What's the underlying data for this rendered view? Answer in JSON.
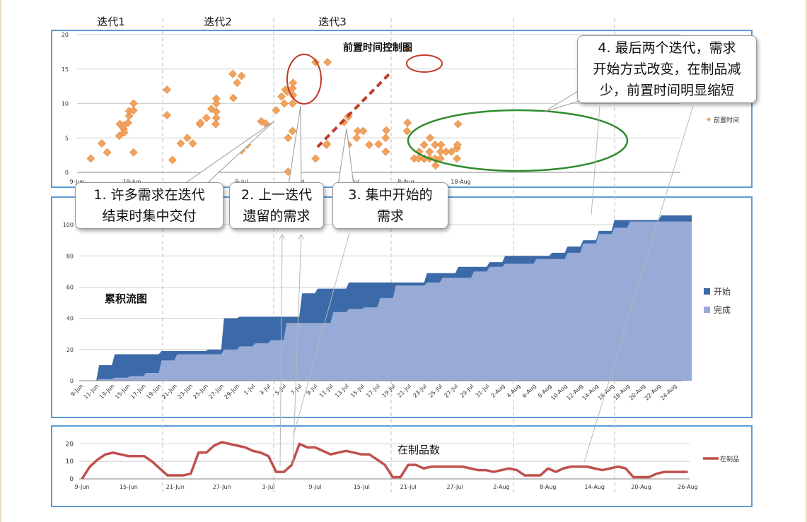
{
  "iterations": [
    "迭代1",
    "迭代2",
    "迭代3"
  ],
  "callouts": [
    {
      "lines": [
        "1. 许多需求在迭代",
        "结束时集中交付"
      ]
    },
    {
      "lines": [
        "2. 上一迭代",
        "遗留的需求"
      ]
    },
    {
      "lines": [
        "3. 集中开始的",
        "需求"
      ]
    },
    {
      "lines": [
        "4. 最后两个迭代，需求",
        "开始方式改变，在制品减",
        "少，前置时间明显缩短"
      ]
    }
  ],
  "colors": {
    "accent": "#5b9bd5",
    "scatter": "#f0a35e",
    "started": "#3c6aa8",
    "done": "#98abd6",
    "wip": "#c0504d",
    "annot_red": "#c0392b",
    "annot_green": "#2e8b2e"
  },
  "chart_data": [
    {
      "type": "scatter",
      "title": "前置时间控制图",
      "legend": [
        "前置时间"
      ],
      "legend_position": "right",
      "ylim": [
        0,
        20
      ],
      "yticks": [
        "0",
        "5",
        "10",
        "15",
        "20"
      ],
      "xticks": [
        "9-Jun",
        "19-Jun",
        "9-Jul",
        "19-Jul",
        "29-Jul",
        "8-Aug",
        "18-Aug"
      ],
      "xtick_days": [
        0,
        10,
        30,
        40,
        50,
        60,
        70
      ],
      "grid": true,
      "points": [
        [
          2.5,
          2
        ],
        [
          4.5,
          4.2
        ],
        [
          5.5,
          2.9
        ],
        [
          7.7,
          5.3
        ],
        [
          7.8,
          7
        ],
        [
          8.5,
          6.3
        ],
        [
          8.5,
          6.8
        ],
        [
          8.6,
          5.8
        ],
        [
          9.3,
          7.2
        ],
        [
          9.5,
          8.2
        ],
        [
          9.5,
          8.9
        ],
        [
          10.3,
          10
        ],
        [
          10.3,
          9
        ],
        [
          10.3,
          2.9
        ],
        [
          16.4,
          12
        ],
        [
          16.4,
          8.3
        ],
        [
          17.4,
          1.8
        ],
        [
          18.9,
          4.2
        ],
        [
          20.1,
          5
        ],
        [
          21.1,
          4.2
        ],
        [
          22.4,
          7
        ],
        [
          22.5,
          7.2
        ],
        [
          23.6,
          7.9
        ],
        [
          24.5,
          9.2
        ],
        [
          25.4,
          10.7
        ],
        [
          25.4,
          10
        ],
        [
          25.4,
          8.8
        ],
        [
          25.4,
          7.9
        ],
        [
          25.3,
          7
        ],
        [
          28.4,
          14.3
        ],
        [
          28.5,
          10.8
        ],
        [
          29.2,
          13
        ],
        [
          30,
          14
        ],
        [
          30,
          3.2
        ],
        [
          31,
          4
        ],
        [
          33.6,
          7.4
        ],
        [
          34.4,
          7.1
        ],
        [
          36.3,
          9
        ],
        [
          37.3,
          11
        ],
        [
          37.8,
          10
        ],
        [
          38,
          12
        ],
        [
          38.3,
          11.7
        ],
        [
          38.5,
          5
        ],
        [
          38.5,
          0.1
        ],
        [
          39.3,
          6
        ],
        [
          39.3,
          10
        ],
        [
          39.3,
          12.2
        ],
        [
          39.4,
          13
        ],
        [
          39.4,
          11.2
        ],
        [
          43.5,
          2
        ],
        [
          45.5,
          4
        ],
        [
          45.6,
          4.1
        ],
        [
          48.7,
          7.3
        ],
        [
          49.5,
          8.1
        ],
        [
          49.5,
          4
        ],
        [
          51,
          5
        ],
        [
          51.2,
          6
        ],
        [
          52.2,
          6
        ],
        [
          53.3,
          4
        ],
        [
          55,
          4.1
        ],
        [
          56.3,
          5
        ],
        [
          56.3,
          3
        ],
        [
          56.4,
          6.1
        ],
        [
          60.2,
          6
        ],
        [
          60.3,
          7.2
        ],
        [
          60.2,
          18
        ],
        [
          61.5,
          2
        ],
        [
          62.3,
          2
        ],
        [
          62.4,
          3
        ],
        [
          63.3,
          2
        ],
        [
          63.3,
          4
        ],
        [
          63.4,
          2
        ],
        [
          64.3,
          2
        ],
        [
          64.3,
          3
        ],
        [
          64.4,
          5
        ],
        [
          65.3,
          2
        ],
        [
          65.3,
          4
        ],
        [
          65.4,
          1
        ],
        [
          66.3,
          2
        ],
        [
          66.3,
          3
        ],
        [
          66.4,
          4
        ],
        [
          67.3,
          3
        ],
        [
          68.3,
          3
        ],
        [
          69.3,
          2
        ],
        [
          69.3,
          3.5
        ],
        [
          69.4,
          4
        ],
        [
          69.5,
          7
        ],
        [
          43.5,
          16
        ],
        [
          45.7,
          16
        ]
      ]
    },
    {
      "type": "area",
      "title": "累积流图",
      "legend": [
        "开始",
        "完成"
      ],
      "legend_position": "right",
      "ylim": [
        0,
        110
      ],
      "yticks": [
        "0",
        "20",
        "40",
        "60",
        "80",
        "100"
      ],
      "grid": true,
      "x": [
        "9-Jun",
        "11-Jun",
        "13-Jun",
        "15-Jun",
        "17-Jun",
        "19-Jun",
        "21-Jun",
        "23-Jun",
        "25-Jun",
        "27-Jun",
        "29-Jun",
        "1-Jul",
        "3-Jul",
        "5-Jul",
        "7-Jul",
        "9-Jul",
        "11-Jul",
        "13-Jul",
        "15-Jul",
        "17-Jul",
        "19-Jul",
        "21-Jul",
        "23-Jul",
        "25-Jul",
        "27-Jul",
        "29-Jul",
        "31-Jul",
        "2-Aug",
        "4-Aug",
        "6-Aug",
        "8-Aug",
        "10-Aug",
        "12-Aug",
        "14-Aug",
        "16-Aug",
        "18-Aug",
        "20-Aug",
        "22-Aug",
        "24-Aug"
      ],
      "series": [
        {
          "name": "开始",
          "values": [
            0,
            10,
            17,
            17,
            17,
            19,
            19,
            19,
            20,
            40,
            41,
            41,
            41,
            41,
            56,
            59,
            59,
            63,
            63,
            63,
            63,
            63,
            69,
            69,
            73,
            73,
            76,
            80,
            80,
            80,
            82,
            86,
            90,
            96,
            103,
            103,
            103,
            106,
            106
          ]
        },
        {
          "name": "完成",
          "values": [
            0,
            1,
            2,
            3,
            5,
            13,
            17,
            17,
            17,
            20,
            22,
            24,
            26,
            37,
            37,
            37,
            44,
            46,
            47,
            53,
            61,
            61,
            63,
            66,
            66,
            70,
            73,
            75,
            75,
            78,
            78,
            82,
            88,
            94,
            98,
            102,
            102,
            102,
            102
          ]
        }
      ]
    },
    {
      "type": "line",
      "title": "在制品数",
      "legend": [
        "在制品"
      ],
      "legend_position": "right",
      "ylim": [
        0,
        25
      ],
      "yticks": [
        "0",
        "10",
        "20"
      ],
      "xticks": [
        "9-Jun",
        "15-Jun",
        "21-Jun",
        "27-Jun",
        "3-Jul",
        "9-Jul",
        "15-Jul",
        "21-Jul",
        "27-Jul",
        "2-Aug",
        "8-Aug",
        "14-Aug",
        "20-Aug",
        "26-Aug"
      ],
      "xtick_days": [
        0,
        6,
        12,
        18,
        24,
        30,
        36,
        42,
        48,
        54,
        60,
        66,
        72,
        78
      ],
      "grid": true,
      "series": [
        {
          "name": "在制品",
          "days": [
            0,
            1,
            2,
            3,
            4,
            5,
            6,
            7,
            8,
            9,
            10,
            11,
            12,
            13,
            14,
            15,
            16,
            17,
            18,
            19,
            20,
            21,
            22,
            23,
            24,
            25,
            26,
            27,
            28,
            29,
            30,
            31,
            32,
            33,
            34,
            35,
            36,
            37,
            38,
            39,
            40,
            41,
            42,
            43,
            44,
            45,
            46,
            47,
            48,
            49,
            50,
            51,
            52,
            53,
            54,
            55,
            56,
            57,
            58,
            59,
            60,
            61,
            62,
            63,
            64,
            65,
            66,
            67,
            68,
            69,
            70,
            71,
            72,
            73,
            74,
            75,
            76,
            77,
            78
          ],
          "values": [
            0,
            7,
            11,
            14,
            15,
            14,
            13,
            13,
            13,
            10,
            6,
            2,
            2,
            2,
            3,
            15,
            15,
            19,
            21,
            20,
            19,
            18,
            16,
            15,
            13,
            4,
            4,
            8,
            20,
            18,
            18,
            16,
            14,
            15,
            16,
            15,
            14,
            14,
            11,
            8,
            1,
            1,
            8,
            8,
            6,
            7,
            7,
            7,
            7,
            7,
            6,
            5,
            5,
            4,
            5,
            6,
            5,
            2,
            2,
            2,
            6,
            4,
            6,
            7,
            7,
            7,
            6,
            5,
            6,
            7,
            6,
            1,
            1,
            1,
            3,
            4,
            4,
            4,
            4
          ]
        }
      ]
    }
  ]
}
